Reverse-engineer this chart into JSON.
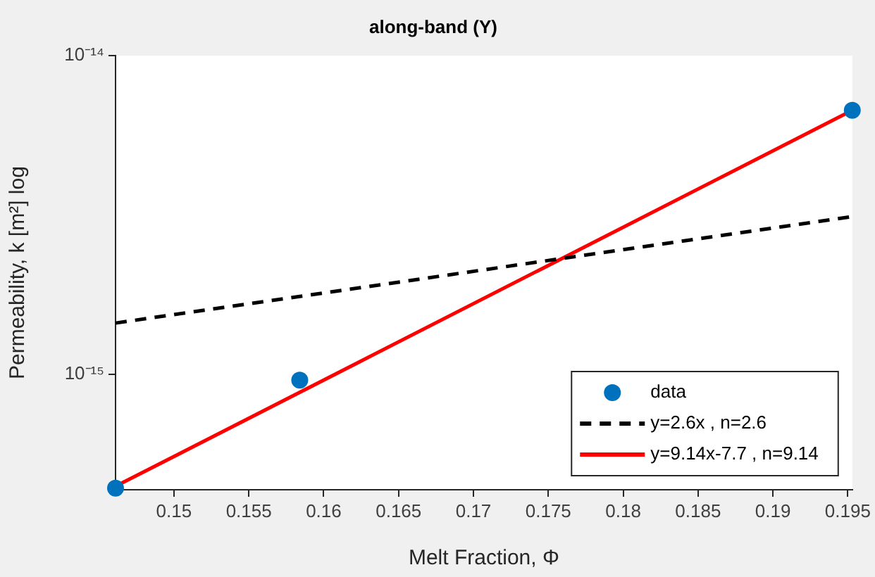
{
  "chart_data": {
    "type": "scatter",
    "title": "along-band (Y)",
    "xlabel": "Melt Fraction, Φ",
    "ylabel": "Permeability, k [m²] log",
    "xlim": [
      0.1461,
      0.1953
    ],
    "xticks": [
      0.15,
      0.155,
      0.16,
      0.165,
      0.17,
      0.175,
      0.18,
      0.185,
      0.19,
      0.195
    ],
    "ylim": [
      4.35e-16,
      1e-14
    ],
    "yticks": [
      {
        "value": 1e-15,
        "label": "10⁻¹⁵"
      },
      {
        "value": 1e-14,
        "label": "10⁻¹⁴"
      }
    ],
    "log": "y",
    "grid": false,
    "legend": "bottom right",
    "series": [
      {
        "name": "data",
        "type": "scatter",
        "color": "#0072bd",
        "marker": "circle",
        "x": [
          0.1461,
          0.1584,
          0.1953
        ],
        "values": [
          4.4e-16,
          9.6e-16,
          6.74e-15
        ]
      },
      {
        "name": "y=2.6x , n=2.6",
        "type": "line",
        "color": "#000000",
        "line_style": "dashed",
        "marker": "none",
        "x": [
          0.1461,
          0.1953
        ],
        "values": [
          1.45e-15,
          3.13e-15
        ]
      },
      {
        "name": "y=9.14x-7.7 , n=9.14",
        "type": "line",
        "color": "#ff0000",
        "line_style": "solid",
        "marker": "none",
        "x": [
          0.1461,
          0.1953
        ],
        "values": [
          4.46e-16,
          6.74e-15
        ]
      }
    ]
  }
}
